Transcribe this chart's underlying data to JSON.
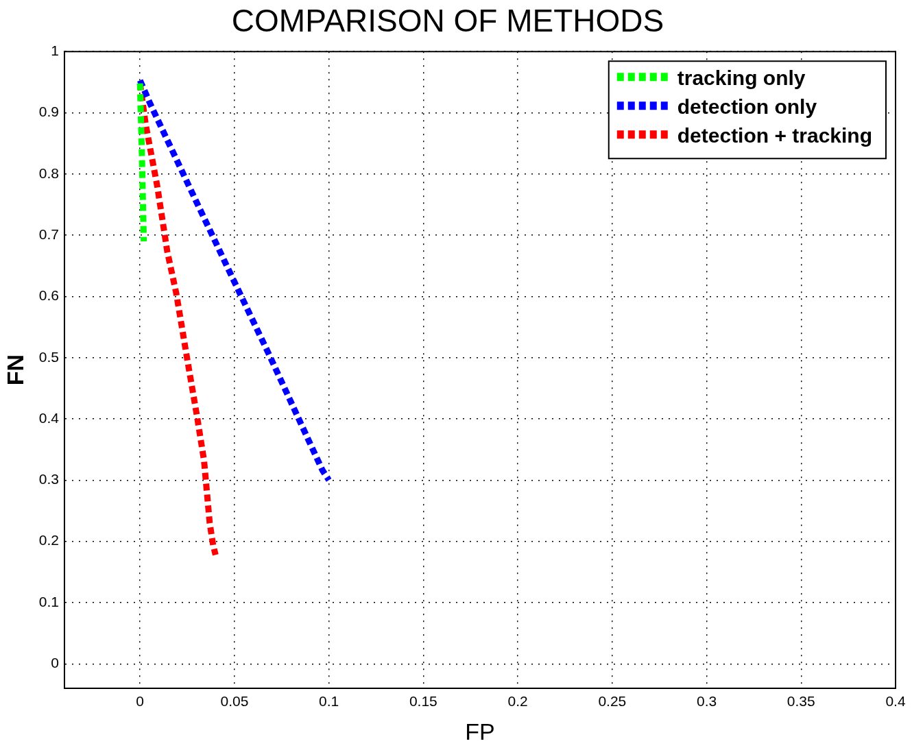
{
  "chart_data": {
    "type": "line",
    "title": "COMPARISON OF METHODS",
    "xlabel": "FP",
    "ylabel": "FN",
    "xlim": [
      -0.04,
      0.4
    ],
    "ylim": [
      -0.04,
      1
    ],
    "xticks": [
      0,
      0.05,
      0.1,
      0.15,
      0.2,
      0.25,
      0.3,
      0.35,
      0.4
    ],
    "yticks": [
      0,
      0.1,
      0.2,
      0.3,
      0.4,
      0.5,
      0.6,
      0.7,
      0.8,
      0.9,
      1
    ],
    "grid": true,
    "legend": "top right",
    "line_style": "dashed",
    "marker": "none",
    "series": [
      {
        "name": "tracking only",
        "color": "#00ff00",
        "x": [
          0,
          0.001,
          0.002
        ],
        "values": [
          0.948,
          0.831,
          0.69
        ]
      },
      {
        "name": "detection only",
        "color": "#0000ff",
        "x": [
          0,
          0.0055,
          0.0295,
          0.0487,
          0.0682,
          0.0966,
          0.1
        ],
        "values": [
          0.953,
          0.914,
          0.757,
          0.632,
          0.506,
          0.316,
          0.3
        ]
      },
      {
        "name": "detection + tracking",
        "color": "#ff0000",
        "x": [
          0,
          0.003,
          0.0092,
          0.0144,
          0.0192,
          0.0247,
          0.0302,
          0.0339,
          0.0369,
          0.0387,
          0.04
        ],
        "values": [
          0.948,
          0.881,
          0.779,
          0.674,
          0.605,
          0.503,
          0.404,
          0.332,
          0.23,
          0.194,
          0.178
        ]
      }
    ]
  }
}
